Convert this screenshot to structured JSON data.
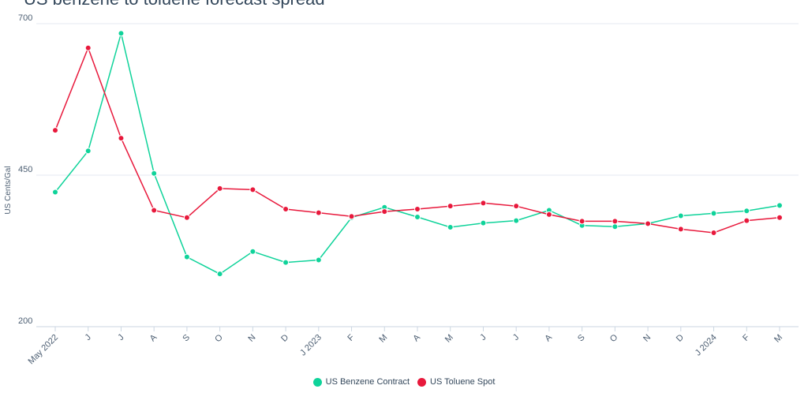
{
  "chart_data": {
    "type": "line",
    "title": "US benzene to toluene forecast spread",
    "ylabel": "US Cents/Gal",
    "xlabel": "",
    "ylim": [
      200,
      700
    ],
    "yticks": [
      200,
      450,
      700
    ],
    "grid": true,
    "legend_position": "bottom-center",
    "categories": [
      "May 2022",
      "J",
      "J",
      "A",
      "S",
      "O",
      "N",
      "D",
      "J 2023",
      "F",
      "M",
      "A",
      "M",
      "J",
      "J",
      "A",
      "S",
      "O",
      "N",
      "D",
      "J 2024",
      "F",
      "M"
    ],
    "series": [
      {
        "name": "US Benzene Contract",
        "color": "#0fd39a",
        "values": [
          422,
          490,
          684,
          453,
          315,
          287,
          324,
          306,
          310,
          380,
          397,
          381,
          364,
          371,
          375,
          392,
          367,
          365,
          370,
          383,
          387,
          391,
          400
        ]
      },
      {
        "name": "US Toluene Spot",
        "color": "#e8193c",
        "values": [
          524,
          660,
          511,
          392,
          380,
          428,
          426,
          394,
          388,
          382,
          390,
          394,
          399,
          404,
          399,
          385,
          374,
          374,
          370,
          361,
          355,
          375,
          380
        ]
      }
    ]
  }
}
